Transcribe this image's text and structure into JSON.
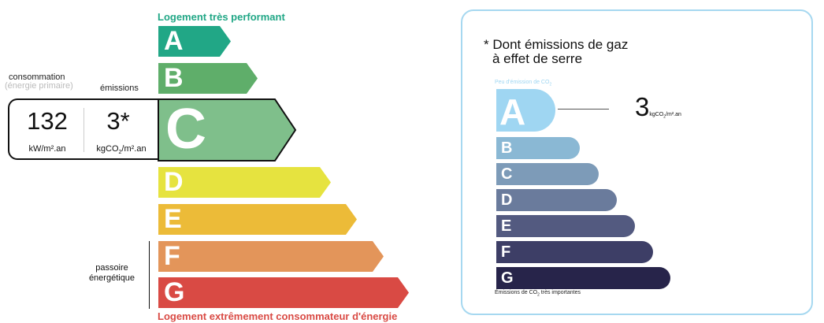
{
  "energy": {
    "top_label": "Logement très performant",
    "bottom_label": "Logement extrêmement consommateur d'énergie",
    "consumption_label": "consommation",
    "consumption_sublabel": "(énergie primaire)",
    "emissions_label": "émissions",
    "consumption_value": "132",
    "consumption_unit": "kW/m².an",
    "emissions_value": "3*",
    "emissions_unit_pre": "kgCO",
    "emissions_unit_sub": "2",
    "emissions_unit_post": "/m².an",
    "passoire_label_1": "passoire",
    "passoire_label_2": "énergétique",
    "current_class": "C",
    "classes": [
      {
        "letter": "A",
        "color": "#21a786"
      },
      {
        "letter": "B",
        "color": "#5fae6a"
      },
      {
        "letter": "C",
        "color": "#7fbf8b"
      },
      {
        "letter": "D",
        "color": "#e6e33f"
      },
      {
        "letter": "E",
        "color": "#ecbb38"
      },
      {
        "letter": "F",
        "color": "#e3955a"
      },
      {
        "letter": "G",
        "color": "#d94a44"
      }
    ]
  },
  "co2": {
    "title_1": "* Dont émissions de gaz",
    "title_2": "à effet de serre",
    "top_label": "Peu d'émission de CO",
    "top_label_sub": "2",
    "bottom_label_pre": "Émissions de CO",
    "bottom_label_sub": "2",
    "bottom_label_post": " très importantes",
    "value": "3",
    "unit_pre": "kgCO",
    "unit_sub": "2",
    "unit_post": "/m².an",
    "current_class": "A",
    "border_color": "#a6d8f0",
    "classes": [
      {
        "letter": "A",
        "color": "#9fd6f2"
      },
      {
        "letter": "B",
        "color": "#8ab8d4"
      },
      {
        "letter": "C",
        "color": "#7d9bb8"
      },
      {
        "letter": "D",
        "color": "#6a7b9c"
      },
      {
        "letter": "E",
        "color": "#535a80"
      },
      {
        "letter": "F",
        "color": "#3d3e66"
      },
      {
        "letter": "G",
        "color": "#27244a"
      }
    ]
  }
}
